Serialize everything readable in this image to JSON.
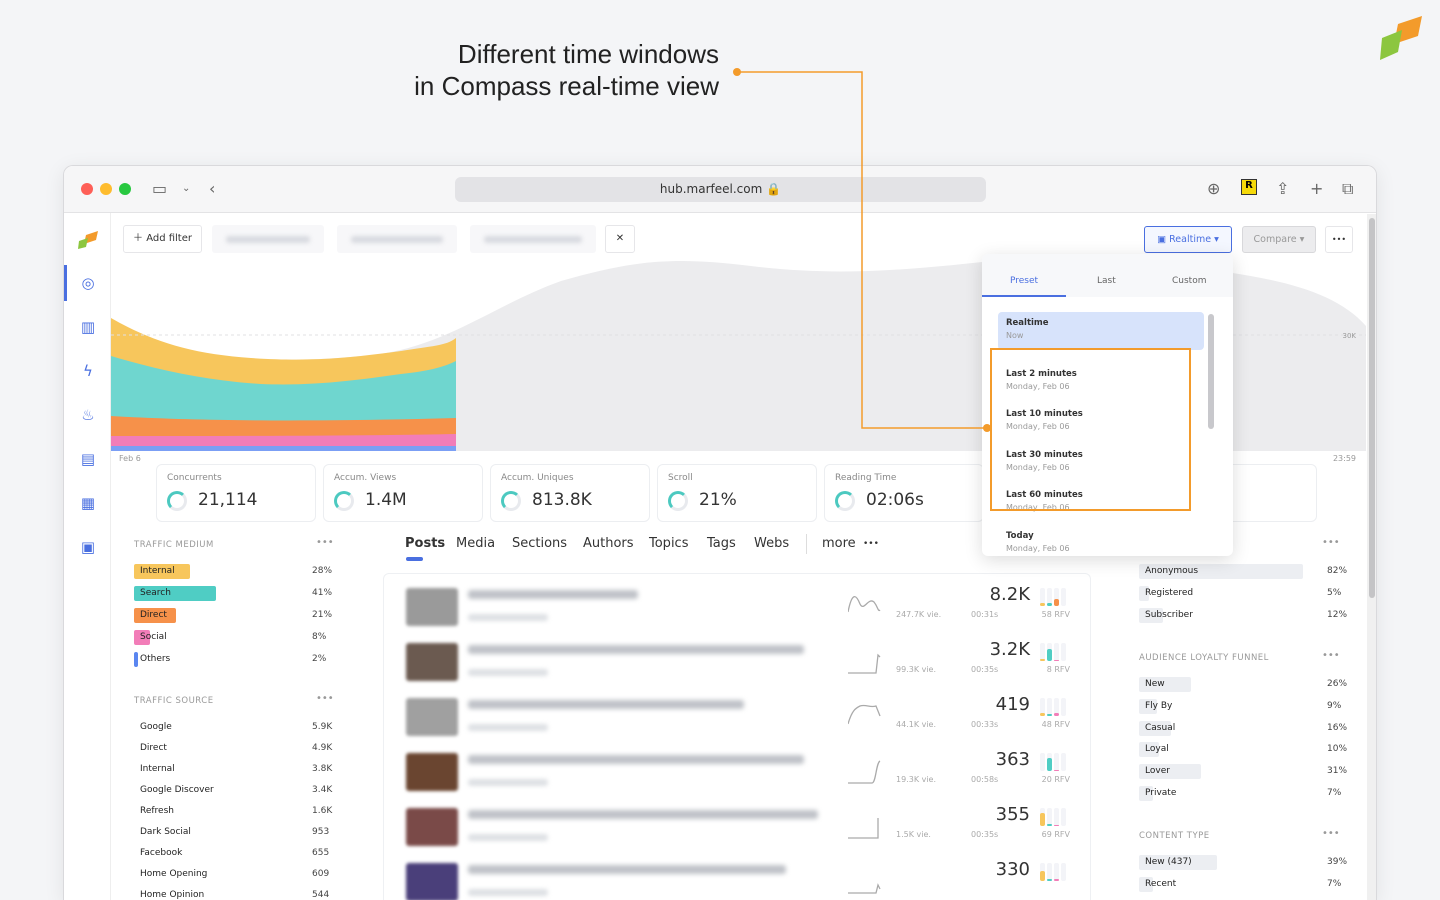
{
  "annotation": {
    "line1": "Different time windows",
    "line2": "in Compass real-time view",
    "color": "#f39b2b"
  },
  "browser": {
    "url": "hub.marfeel.com"
  },
  "filters": {
    "add_filter": "Add filter"
  },
  "toolbar": {
    "realtime": "Realtime",
    "compare": "Compare",
    "more": "•••"
  },
  "chart": {
    "y_tick": "30K",
    "x_start": "Feb 6",
    "x_end": "23:59"
  },
  "metrics": [
    {
      "label": "Concurrents",
      "value": "21,114"
    },
    {
      "label": "Accum. Views",
      "value": "1.4M"
    },
    {
      "label": "Accum. Uniques",
      "value": "813.8K"
    },
    {
      "label": "Scroll",
      "value": "21%"
    },
    {
      "label": "Reading Time",
      "value": "02:06s"
    }
  ],
  "dropdown": {
    "tabs": [
      "Preset",
      "Last",
      "Custom"
    ],
    "options": [
      {
        "title": "Realtime",
        "sub": "Now"
      },
      {
        "title": "Last 2 minutes",
        "sub": "Monday, Feb 06"
      },
      {
        "title": "Last 10 minutes",
        "sub": "Monday, Feb 06"
      },
      {
        "title": "Last 30 minutes",
        "sub": "Monday, Feb 06"
      },
      {
        "title": "Last 60 minutes",
        "sub": "Monday, Feb 06"
      },
      {
        "title": "Today",
        "sub": "Monday, Feb 06"
      }
    ]
  },
  "traffic_medium": {
    "title": "TRAFFIC MEDIUM",
    "items": [
      {
        "label": "Internal",
        "pct": "28%",
        "value": 28,
        "color": "#f7c65c"
      },
      {
        "label": "Search",
        "pct": "41%",
        "value": 41,
        "color": "#4fcdc4"
      },
      {
        "label": "Direct",
        "pct": "21%",
        "value": 21,
        "color": "#f6914a"
      },
      {
        "label": "Social",
        "pct": "8%",
        "value": 8,
        "color": "#f27db8"
      },
      {
        "label": "Others",
        "pct": "2%",
        "value": 2,
        "color": "#5a86f0"
      }
    ]
  },
  "traffic_source": {
    "title": "TRAFFIC SOURCE",
    "items": [
      {
        "label": "Google",
        "value": "5.9K"
      },
      {
        "label": "Direct",
        "value": "4.9K"
      },
      {
        "label": "Internal",
        "value": "3.8K"
      },
      {
        "label": "Google Discover",
        "value": "3.4K"
      },
      {
        "label": "Refresh",
        "value": "1.6K"
      },
      {
        "label": "Dark Social",
        "value": "953"
      },
      {
        "label": "Facebook",
        "value": "655"
      },
      {
        "label": "Home Opening",
        "value": "609"
      },
      {
        "label": "Home Opinion",
        "value": "544"
      }
    ]
  },
  "tabs": [
    "Posts",
    "Media",
    "Sections",
    "Authors",
    "Topics",
    "Tags",
    "Webs",
    "more"
  ],
  "posts": [
    {
      "value": "8.2K",
      "views": "247.7K vie.",
      "time": "00:31s",
      "rfv": "58 RFV",
      "thumb": "#9a9a9a"
    },
    {
      "value": "3.2K",
      "views": "99.3K vie.",
      "time": "00:35s",
      "rfv": "8 RFV",
      "thumb": "#6b5a50"
    },
    {
      "value": "419",
      "views": "44.1K vie.",
      "time": "00:33s",
      "rfv": "48 RFV",
      "thumb": "#a0a0a0"
    },
    {
      "value": "363",
      "views": "19.3K vie.",
      "time": "00:58s",
      "rfv": "20 RFV",
      "thumb": "#6a4530"
    },
    {
      "value": "355",
      "views": "1.5K vie.",
      "time": "00:35s",
      "rfv": "69 RFV",
      "thumb": "#7a4a48"
    },
    {
      "value": "330",
      "views": "",
      "time": "",
      "rfv": "",
      "thumb": "#4a3f7a"
    }
  ],
  "user_type": {
    "items": [
      {
        "label": "Anonymous",
        "pct": "82%",
        "value": 82
      },
      {
        "label": "Registered",
        "pct": "5%",
        "value": 5
      },
      {
        "label": "Subscriber",
        "pct": "12%",
        "value": 12
      }
    ]
  },
  "loyalty": {
    "title": "AUDIENCE LOYALTY FUNNEL",
    "items": [
      {
        "label": "New",
        "pct": "26%",
        "value": 26
      },
      {
        "label": "Fly By",
        "pct": "9%",
        "value": 9
      },
      {
        "label": "Casual",
        "pct": "16%",
        "value": 16
      },
      {
        "label": "Loyal",
        "pct": "10%",
        "value": 10
      },
      {
        "label": "Lover",
        "pct": "31%",
        "value": 31
      },
      {
        "label": "Private",
        "pct": "7%",
        "value": 7
      }
    ]
  },
  "content_type": {
    "title": "CONTENT TYPE",
    "items": [
      {
        "label": "New (437)",
        "pct": "39%",
        "value": 39
      },
      {
        "label": "Recent",
        "pct": "7%",
        "value": 7
      }
    ]
  }
}
